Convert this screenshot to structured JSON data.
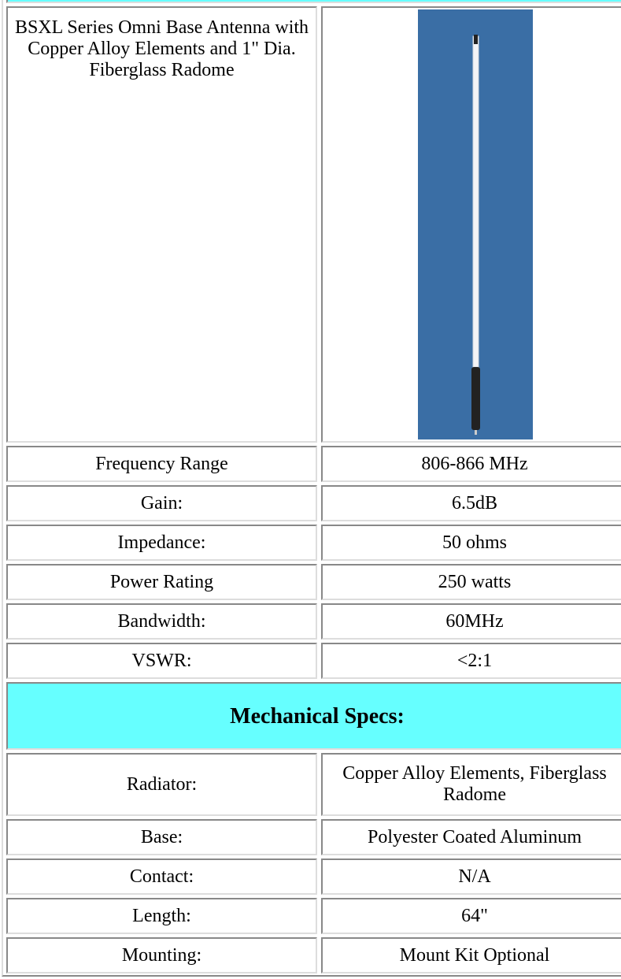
{
  "product": {
    "description": "BSXL Series Omni Base Antenna with Copper Alloy Elements and 1\" Dia. Fiberglass Radome"
  },
  "electrical_specs": [
    [
      "Frequency Range",
      "806-866 MHz"
    ],
    [
      "Gain:",
      "6.5dB"
    ],
    [
      "Impedance:",
      "50 ohms"
    ],
    [
      "Power Rating",
      "250 watts"
    ],
    [
      "Bandwidth:",
      "60MHz"
    ],
    [
      "VSWR:",
      "<2:1"
    ]
  ],
  "mechanical": {
    "title": "Mechanical Specs:",
    "rows": [
      [
        "Radiator:",
        "Copper Alloy Elements, Fiberglass Radome"
      ],
      [
        "Base:",
        "Polyester Coated Aluminum"
      ],
      [
        "Contact:",
        "N/A"
      ],
      [
        "Length:",
        "64\""
      ],
      [
        "Mounting:",
        "Mount Kit Optional"
      ]
    ]
  }
}
